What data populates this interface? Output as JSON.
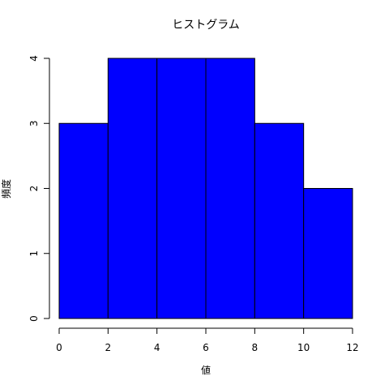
{
  "chart_data": {
    "type": "bar",
    "title": "ヒストグラム",
    "xlabel": "値",
    "ylabel": "頻度",
    "bins": [
      {
        "start": 0,
        "end": 2,
        "count": 3
      },
      {
        "start": 2,
        "end": 4,
        "count": 4
      },
      {
        "start": 4,
        "end": 6,
        "count": 4
      },
      {
        "start": 6,
        "end": 8,
        "count": 4
      },
      {
        "start": 8,
        "end": 10,
        "count": 3
      },
      {
        "start": 10,
        "end": 12,
        "count": 2
      }
    ],
    "xlim": [
      0,
      12
    ],
    "ylim": [
      0,
      4
    ],
    "x_ticks": [
      "0",
      "2",
      "4",
      "6",
      "8",
      "10",
      "12"
    ],
    "y_ticks": [
      "0",
      "1",
      "2",
      "3",
      "4"
    ],
    "bar_color": "#0000ff",
    "bar_border_color": "#000000",
    "grid": false
  }
}
